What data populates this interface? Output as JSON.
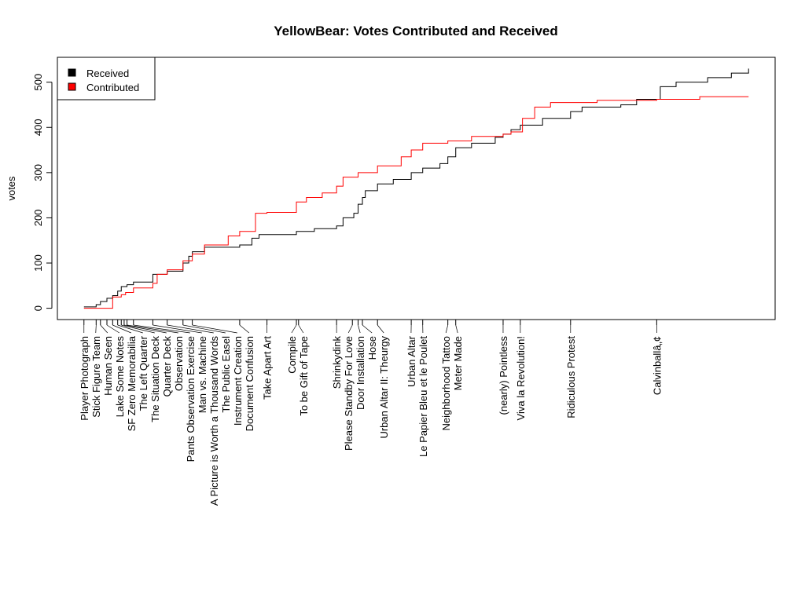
{
  "chart_data": {
    "type": "line",
    "title": "YellowBear: Votes Contributed and Received",
    "xlabel": "",
    "ylabel": "votes",
    "xlim": [
      0,
      100
    ],
    "ylim": [
      -25,
      555
    ],
    "yticks": [
      0,
      100,
      200,
      300,
      400,
      500
    ],
    "grid": false,
    "legend_position": "top-left",
    "xticks": [
      {
        "x": 3.7,
        "label": "Player Photograph"
      },
      {
        "x": 5.4,
        "label": "Stick Figure Team"
      },
      {
        "x": 6.0,
        "label": "Human Seen"
      },
      {
        "x": 6.9,
        "label": "Lake Some Notes"
      },
      {
        "x": 7.7,
        "label": "SF Zero Memorabilia"
      },
      {
        "x": 8.4,
        "label": "The Left Quarter"
      },
      {
        "x": 8.9,
        "label": "The Situation Deck"
      },
      {
        "x": 9.3,
        "label": "Quarter Deck"
      },
      {
        "x": 9.7,
        "label": "Observation"
      },
      {
        "x": 10.6,
        "label": "Pants Observation Exercise"
      },
      {
        "x": 13.3,
        "label": "Man vs. Machine"
      },
      {
        "x": 15.3,
        "label": "A Picture is Worth a Thousand Words"
      },
      {
        "x": 17.5,
        "label": "The Public Easel"
      },
      {
        "x": 18.8,
        "label": "Instrument Creation"
      },
      {
        "x": 25.4,
        "label": "Document Confusion"
      },
      {
        "x": 29.2,
        "label": "Take Apart Art"
      },
      {
        "x": 33.3,
        "label": "Compile"
      },
      {
        "x": 33.6,
        "label": "To be Gift of Tape"
      },
      {
        "x": 38.9,
        "label": "Shrinkydink"
      },
      {
        "x": 41.1,
        "label": "Please Standby For Love"
      },
      {
        "x": 41.9,
        "label": "Door Installation"
      },
      {
        "x": 42.5,
        "label": "Hose"
      },
      {
        "x": 44.6,
        "label": "Urban Altar II: Theurgy"
      },
      {
        "x": 49.3,
        "label": "Urban Altar"
      },
      {
        "x": 50.9,
        "label": "Le Papier Bleu et le Poulet"
      },
      {
        "x": 54.4,
        "label": "Neighborhood Tattoo"
      },
      {
        "x": 55.5,
        "label": "Meter Made"
      },
      {
        "x": 62.1,
        "label": "(nearly) Pointless"
      },
      {
        "x": 64.5,
        "label": "Viva la Revolution!"
      },
      {
        "x": 71.5,
        "label": "Ridiculous Protest"
      },
      {
        "x": 83.5,
        "label": "Calvinballâ„¢"
      }
    ],
    "series": [
      {
        "name": "Received",
        "color": "#000000",
        "x": [
          3.7,
          5.4,
          6.0,
          6.9,
          7.7,
          8.4,
          8.9,
          9.7,
          10.6,
          13.3,
          15.3,
          17.5,
          18.3,
          18.8,
          20.5,
          25.4,
          27.1,
          28.1,
          33.3,
          35.8,
          38.9,
          39.8,
          41.3,
          41.9,
          42.5,
          42.9,
          44.6,
          46.8,
          49.3,
          50.9,
          53.3,
          54.4,
          55.5,
          57.7,
          61.0,
          62.1,
          63.2,
          64.5,
          67.6,
          71.5,
          73.1,
          78.5,
          80.7,
          83.5,
          84.0,
          86.2,
          90.6,
          93.9,
          96.3
        ],
        "y": [
          3,
          8,
          15,
          22,
          28,
          38,
          48,
          52,
          58,
          75,
          82,
          100,
          115,
          125,
          135,
          140,
          155,
          163,
          170,
          176,
          182,
          200,
          210,
          230,
          245,
          260,
          275,
          285,
          300,
          310,
          320,
          335,
          355,
          365,
          378,
          385,
          395,
          405,
          420,
          435,
          445,
          450,
          462,
          462,
          490,
          500,
          510,
          520,
          530
        ]
      },
      {
        "name": "Contributed",
        "color": "#ff0000",
        "x": [
          3.7,
          7.3,
          7.7,
          8.9,
          9.5,
          10.6,
          13.3,
          13.9,
          15.3,
          17.5,
          18.8,
          20.5,
          23.8,
          25.4,
          27.6,
          29.2,
          33.3,
          34.7,
          36.9,
          38.9,
          39.8,
          41.9,
          44.6,
          47.9,
          49.3,
          50.9,
          54.4,
          57.7,
          62.1,
          63.2,
          64.8,
          66.5,
          68.7,
          75.2,
          83.5,
          89.5,
          96.3
        ],
        "y": [
          0,
          0,
          25,
          30,
          35,
          45,
          55,
          75,
          85,
          105,
          120,
          140,
          160,
          170,
          210,
          212,
          235,
          245,
          255,
          270,
          290,
          300,
          315,
          335,
          350,
          365,
          370,
          380,
          385,
          390,
          420,
          445,
          455,
          460,
          462,
          468,
          468
        ]
      }
    ]
  }
}
